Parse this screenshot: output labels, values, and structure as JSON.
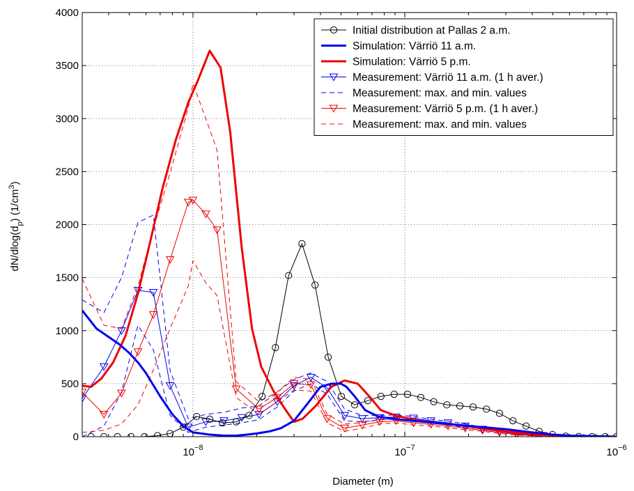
{
  "chart_data": {
    "type": "line",
    "xscale": "log",
    "xlabel": "Diameter (m)",
    "ylabel": "dN/dlog(d",
    "ylabel_sub": "p",
    "ylabel_rest": ") (1/cm",
    "ylabel_sup": "3",
    "ylabel_end": ")",
    "xlim": [
      3e-09,
      1e-06
    ],
    "ylim": [
      0,
      4000
    ],
    "yticks": [
      0,
      500,
      1000,
      1500,
      2000,
      2500,
      3000,
      3500,
      4000
    ],
    "ytick_labels": [
      "0",
      "500",
      "1000",
      "1500",
      "2000",
      "2500",
      "3000",
      "3500",
      "4000"
    ],
    "xticks": [
      1e-08,
      1e-07,
      1e-06
    ],
    "xtick_bases": [
      "10",
      "10",
      "10"
    ],
    "xtick_exps": [
      "−8",
      "−7",
      "−6"
    ],
    "grid": true,
    "legend_position": "top-right",
    "series": [
      {
        "name": "Initial distribution at Pallas 2 a.m.",
        "color": "#000000",
        "width": 1,
        "dash": "",
        "marker": "circle",
        "legend": true,
        "x": [
          3.3e-09,
          3.8e-09,
          4.4e-09,
          5.1e-09,
          5.9e-09,
          6.8e-09,
          7.8e-09,
          9e-09,
          1.04e-08,
          1.2e-08,
          1.38e-08,
          1.6e-08,
          1.84e-08,
          2.12e-08,
          2.45e-08,
          2.83e-08,
          3.27e-08,
          3.77e-08,
          4.35e-08,
          5.02e-08,
          5.8e-08,
          6.69e-08,
          7.72e-08,
          8.91e-08,
          1.03e-07,
          1.19e-07,
          1.37e-07,
          1.58e-07,
          1.82e-07,
          2.1e-07,
          2.43e-07,
          2.8e-07,
          3.24e-07,
          3.74e-07,
          4.31e-07,
          4.98e-07,
          5.75e-07,
          6.63e-07,
          7.66e-07,
          8.84e-07,
          1e-06
        ],
        "y": [
          0,
          0,
          0,
          0,
          0,
          10,
          30,
          90,
          190,
          165,
          130,
          140,
          200,
          380,
          840,
          1520,
          1820,
          1430,
          750,
          380,
          300,
          340,
          380,
          400,
          400,
          370,
          330,
          300,
          290,
          280,
          260,
          220,
          150,
          100,
          50,
          20,
          5,
          2,
          1,
          0,
          0
        ]
      },
      {
        "name": "Simulation: Värriö 11 a.m.",
        "color": "#0000ee",
        "width": 3,
        "dash": "",
        "marker": "none",
        "legend": true,
        "x": [
          3e-09,
          3.5e-09,
          4e-09,
          4.5e-09,
          5e-09,
          5.5e-09,
          6e-09,
          7e-09,
          8e-09,
          9e-09,
          1e-08,
          1.2e-08,
          1.4e-08,
          1.6e-08,
          1.8e-08,
          2e-08,
          2.3e-08,
          2.6e-08,
          3e-08,
          3.5e-08,
          4e-08,
          4.5e-08,
          5e-08,
          5.3e-08,
          5.8e-08,
          6.5e-08,
          7.5e-08,
          9e-08,
          1.1e-07,
          1.4e-07,
          1.8e-07,
          2.3e-07,
          3e-07,
          4e-07,
          5e-07,
          6e-07,
          8e-07,
          1e-06
        ],
        "y": [
          1190,
          1020,
          940,
          870,
          790,
          700,
          600,
          380,
          210,
          100,
          40,
          20,
          10,
          10,
          20,
          30,
          50,
          80,
          150,
          320,
          470,
          500,
          500,
          470,
          380,
          250,
          190,
          165,
          150,
          130,
          110,
          90,
          70,
          40,
          20,
          10,
          5,
          0
        ]
      },
      {
        "name": "Simulation: Värriö 5 p.m.",
        "color": "#ee0000",
        "width": 3,
        "dash": "",
        "marker": "none",
        "legend": true,
        "x": [
          3e-09,
          3.3e-09,
          3.7e-09,
          4.2e-09,
          4.8e-09,
          5.5e-09,
          6.3e-09,
          7.2e-09,
          8.3e-09,
          9.5e-09,
          1.05e-08,
          1.2e-08,
          1.35e-08,
          1.5e-08,
          1.7e-08,
          1.9e-08,
          2.1e-08,
          2.4e-08,
          2.7e-08,
          3e-08,
          3.3e-08,
          3.8e-08,
          4.5e-08,
          5.2e-08,
          6e-08,
          6.8e-08,
          7.7e-08,
          9e-08,
          1.1e-07,
          1.4e-07,
          1.8e-07,
          2.3e-07,
          3e-07,
          4e-07,
          5e-07,
          6e-07,
          8e-07,
          1e-06
        ],
        "y": [
          480,
          470,
          550,
          700,
          950,
          1350,
          1850,
          2350,
          2800,
          3150,
          3350,
          3640,
          3480,
          2870,
          1780,
          1020,
          660,
          430,
          270,
          140,
          170,
          290,
          470,
          530,
          500,
          380,
          250,
          200,
          160,
          130,
          110,
          80,
          50,
          25,
          10,
          5,
          2,
          0
        ]
      },
      {
        "name": "Measurement: Värriö 11 a.m. (1 h aver.)",
        "color": "#0000ee",
        "width": 1,
        "dash": "",
        "marker": "triangle-down",
        "legend": true,
        "x": [
          3e-09,
          3.8e-09,
          4.6e-09,
          5.5e-09,
          6.5e-09,
          7.8e-09,
          9.5e-09,
          1.15e-08,
          1.4e-08,
          1.7e-08,
          2.05e-08,
          2.5e-08,
          3e-08,
          3.6e-08,
          4.3e-08,
          5.2e-08,
          6.3e-08,
          7.6e-08,
          9.1e-08,
          1.1e-07,
          1.33e-07,
          1.6e-07,
          1.93e-07,
          2.33e-07,
          2.8e-07,
          3.38e-07,
          4.07e-07,
          4.5e-07
        ],
        "y": [
          360,
          660,
          1000,
          1380,
          1360,
          480,
          90,
          140,
          150,
          180,
          210,
          330,
          480,
          560,
          460,
          200,
          170,
          180,
          185,
          175,
          150,
          130,
          100,
          70,
          50,
          30,
          15,
          10
        ]
      },
      {
        "name": "Measurement: max. and min. values",
        "color": "#0000ee",
        "width": 1,
        "dash": "7,5",
        "marker": "none",
        "legend": true,
        "x": [
          3e-09,
          3.8e-09,
          4.6e-09,
          5.5e-09,
          6.5e-09,
          7.8e-09,
          9.5e-09,
          1.15e-08,
          1.4e-08,
          1.7e-08,
          2.05e-08,
          2.5e-08,
          3e-08,
          3.6e-08,
          4.3e-08,
          5.2e-08,
          6.3e-08,
          7.6e-08,
          9.1e-08,
          1.1e-07,
          1.33e-07,
          1.6e-07,
          1.93e-07,
          2.33e-07,
          2.8e-07,
          3.38e-07,
          4.07e-07,
          4.5e-07
        ],
        "y": [
          1290,
          1170,
          1500,
          2020,
          2090,
          620,
          170,
          210,
          230,
          270,
          290,
          420,
          540,
          600,
          520,
          260,
          200,
          200,
          205,
          190,
          165,
          145,
          120,
          90,
          60,
          40,
          20,
          12
        ]
      },
      {
        "name": "",
        "color": "#0000ee",
        "width": 1,
        "dash": "7,5",
        "marker": "none",
        "legend": false,
        "x": [
          3e-09,
          3.8e-09,
          4.6e-09,
          5.5e-09,
          6.5e-09,
          7.8e-09,
          9.5e-09,
          1.15e-08,
          1.4e-08,
          1.7e-08,
          2.05e-08,
          2.5e-08,
          3e-08,
          3.6e-08,
          4.3e-08,
          5.2e-08,
          6.3e-08,
          7.6e-08,
          9.1e-08,
          1.1e-07,
          1.33e-07,
          1.6e-07,
          1.93e-07,
          2.33e-07,
          2.8e-07,
          3.38e-07,
          4.07e-07,
          4.5e-07
        ],
        "y": [
          0,
          100,
          420,
          1050,
          820,
          200,
          40,
          90,
          110,
          130,
          160,
          280,
          430,
          500,
          400,
          150,
          140,
          160,
          165,
          160,
          135,
          115,
          85,
          60,
          40,
          25,
          10,
          8
        ]
      },
      {
        "name": "Measurement: Värriö 5 p.m. (1 h aver.)",
        "color": "#ee0000",
        "width": 1,
        "dash": "",
        "marker": "triangle-down",
        "legend": true,
        "x": [
          3e-09,
          3.8e-09,
          4.6e-09,
          5.5e-09,
          6.5e-09,
          7.8e-09,
          9.5e-09,
          1e-08,
          1.15e-08,
          1.3e-08,
          1.6e-08,
          2.05e-08,
          2.5e-08,
          3e-08,
          3.6e-08,
          4.3e-08,
          5.2e-08,
          6.3e-08,
          7.6e-08,
          9.1e-08,
          1.1e-07,
          1.33e-07,
          1.6e-07,
          1.93e-07,
          2.33e-07,
          2.8e-07,
          3.38e-07,
          4.07e-07,
          4.5e-07
        ],
        "y": [
          420,
          210,
          410,
          800,
          1150,
          1670,
          2210,
          2230,
          2100,
          1950,
          450,
          260,
          370,
          500,
          490,
          170,
          80,
          110,
          140,
          150,
          130,
          115,
          100,
          80,
          60,
          40,
          20,
          10,
          8
        ]
      },
      {
        "name": "Measurement: max. and min. values",
        "color": "#ee0000",
        "width": 1,
        "dash": "7,5",
        "marker": "none",
        "legend": true,
        "x": [
          3e-09,
          3.8e-09,
          4.6e-09,
          5.5e-09,
          6.5e-09,
          7.8e-09,
          9.5e-09,
          1e-08,
          1.15e-08,
          1.3e-08,
          1.6e-08,
          2.05e-08,
          2.5e-08,
          3e-08,
          3.6e-08,
          4.3e-08,
          5.2e-08,
          6.3e-08,
          7.6e-08,
          9.1e-08,
          1.1e-07,
          1.33e-07,
          1.6e-07,
          1.93e-07,
          2.33e-07,
          2.8e-07,
          3.38e-07,
          4.07e-07,
          4.5e-07
        ],
        "y": [
          1490,
          1050,
          1020,
          1420,
          1960,
          2490,
          3100,
          3330,
          3000,
          2700,
          520,
          330,
          420,
          560,
          540,
          210,
          120,
          130,
          160,
          170,
          150,
          130,
          115,
          95,
          70,
          50,
          25,
          12,
          10
        ]
      },
      {
        "name": "",
        "color": "#ee0000",
        "width": 1,
        "dash": "7,5",
        "marker": "none",
        "legend": false,
        "x": [
          3e-09,
          3.8e-09,
          4.6e-09,
          5.5e-09,
          6.5e-09,
          7.8e-09,
          9.5e-09,
          1e-08,
          1.15e-08,
          1.3e-08,
          1.6e-08,
          2.05e-08,
          2.5e-08,
          3e-08,
          3.6e-08,
          4.3e-08,
          5.2e-08,
          6.3e-08,
          7.6e-08,
          9.1e-08,
          1.1e-07,
          1.33e-07,
          1.6e-07,
          1.93e-07,
          2.33e-07,
          2.8e-07,
          3.38e-07,
          4.07e-07,
          4.5e-07
        ],
        "y": [
          40,
          60,
          120,
          300,
          630,
          1020,
          1420,
          1660,
          1450,
          1330,
          370,
          210,
          330,
          440,
          430,
          130,
          50,
          80,
          120,
          130,
          110,
          100,
          85,
          65,
          50,
          30,
          15,
          8,
          6
        ]
      }
    ]
  }
}
